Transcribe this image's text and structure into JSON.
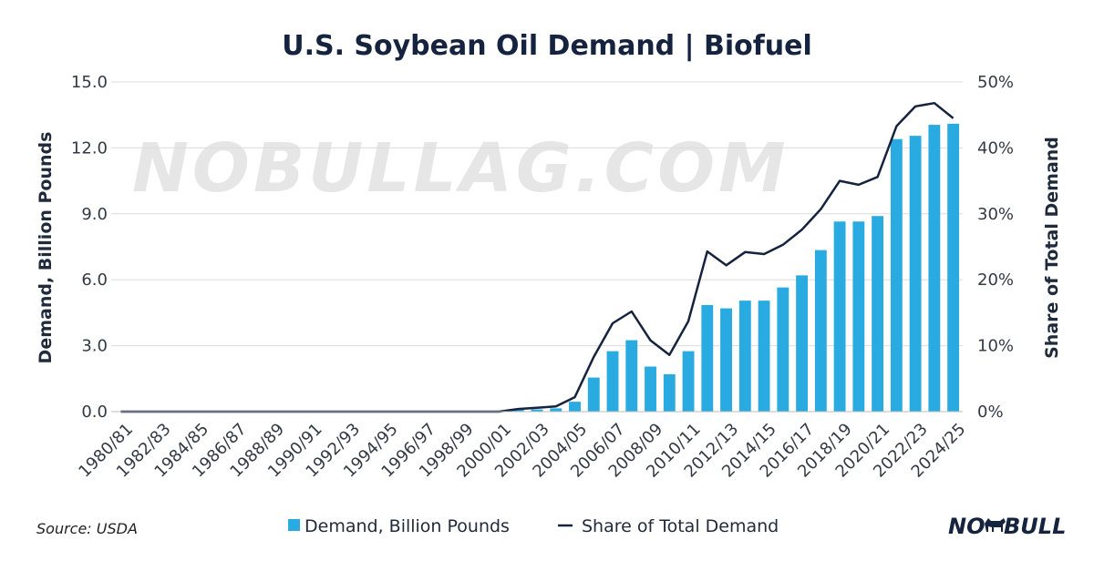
{
  "chart_data": {
    "type": "bar",
    "title": "U.S. Soybean Oil Demand | Biofuel",
    "ylabel": "Demand, Billion Pounds",
    "y2label": "Share of Total Demand",
    "ylim": [
      0,
      15
    ],
    "y2lim": [
      0,
      50
    ],
    "yticks": [
      "0.0",
      "3.0",
      "6.0",
      "9.0",
      "12.0",
      "15.0"
    ],
    "y2ticks": [
      "0%",
      "10%",
      "20%",
      "30%",
      "40%",
      "50%"
    ],
    "grid": true,
    "legend_position": "bottom",
    "categories": [
      "1980/81",
      "1981/82",
      "1982/83",
      "1983/84",
      "1984/85",
      "1985/86",
      "1986/87",
      "1987/88",
      "1988/89",
      "1989/90",
      "1990/91",
      "1991/92",
      "1992/93",
      "1993/94",
      "1994/95",
      "1995/96",
      "1996/97",
      "1997/98",
      "1998/99",
      "1999/00",
      "2000/01",
      "2001/02",
      "2002/03",
      "2003/04",
      "2004/05",
      "2005/06",
      "2006/07",
      "2007/08",
      "2008/09",
      "2009/10",
      "2010/11",
      "2011/12",
      "2012/13",
      "2013/14",
      "2014/15",
      "2015/16",
      "2016/17",
      "2017/18",
      "2018/19",
      "2019/20",
      "2020/21",
      "2021/22",
      "2022/23",
      "2023/24",
      "2024/25"
    ],
    "xtick_labels": [
      "1980/81",
      "1982/83",
      "1984/85",
      "1986/87",
      "1988/89",
      "1990/91",
      "1992/93",
      "1994/95",
      "1996/97",
      "1998/99",
      "2000/01",
      "2002/03",
      "2004/05",
      "2006/07",
      "2008/09",
      "2010/11",
      "2012/13",
      "2014/15",
      "2016/17",
      "2018/19",
      "2020/21",
      "2022/23",
      "2024/25"
    ],
    "series": [
      {
        "name": "Demand, Billion Pounds",
        "type": "bar",
        "axis": "left",
        "values": [
          0,
          0,
          0,
          0,
          0,
          0,
          0,
          0,
          0,
          0,
          0,
          0,
          0,
          0,
          0,
          0,
          0,
          0,
          0,
          0,
          0,
          0.1,
          0.1,
          0.15,
          0.45,
          1.55,
          2.75,
          3.25,
          2.05,
          1.7,
          2.75,
          4.85,
          4.7,
          5.05,
          5.05,
          5.65,
          6.2,
          7.35,
          8.65,
          8.65,
          8.9,
          12.4,
          12.55,
          13.05,
          13.1
        ]
      },
      {
        "name": "Share of Total Demand",
        "type": "line",
        "axis": "right",
        "values": [
          0,
          0,
          0,
          0,
          0,
          0,
          0,
          0,
          0,
          0,
          0,
          0,
          0,
          0,
          0,
          0,
          0,
          0,
          0,
          0,
          0,
          0.4,
          0.6,
          0.8,
          2.2,
          8.3,
          13.4,
          15.2,
          10.8,
          8.6,
          13.7,
          24.3,
          22.2,
          24.2,
          23.9,
          25.3,
          27.6,
          30.7,
          35.0,
          34.4,
          35.6,
          43.3,
          46.3,
          46.8,
          44.5
        ]
      }
    ],
    "colors": {
      "bar": "#29abe2",
      "line": "#15233f",
      "grid": "#dcdcdc",
      "title": "#15233f"
    }
  },
  "watermark": "NOBULLAG.COM",
  "footer": {
    "source": "Source: USDA",
    "logo_left": "NO",
    "logo_right": "BULL"
  }
}
